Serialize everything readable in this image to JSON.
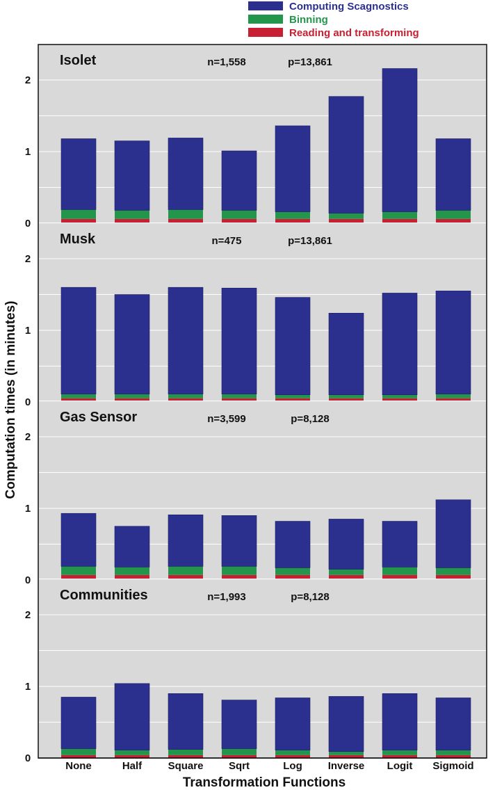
{
  "chart_data": {
    "type": "bar",
    "stacked": true,
    "xlabel": "Transformation Functions",
    "ylabel": "Computation times (in minutes)",
    "categories": [
      "None",
      "Half",
      "Square",
      "Sqrt",
      "Log",
      "Inverse",
      "Logit",
      "Sigmoid"
    ],
    "ylim": [
      0,
      2.5
    ],
    "yticks": [
      "0",
      "1",
      "2"
    ],
    "grid": true,
    "legend_position": "top-right",
    "series_styles": [
      {
        "name": "Reading and transforming",
        "color": "#c62032"
      },
      {
        "name": "Binning",
        "color": "#23964b"
      },
      {
        "name": "Computing Scagnostics",
        "color": "#2b2f8d"
      }
    ],
    "panels": [
      {
        "title": "Isolet",
        "n_label": "n=1,558",
        "p_label": "p=13,861",
        "series": [
          {
            "name": "Reading and transforming",
            "values": [
              0.06,
              0.06,
              0.06,
              0.06,
              0.06,
              0.06,
              0.06,
              0.06
            ]
          },
          {
            "name": "Binning",
            "values": [
              0.13,
              0.12,
              0.13,
              0.12,
              0.1,
              0.08,
              0.1,
              0.12
            ]
          },
          {
            "name": "Computing Scagnostics",
            "values": [
              0.99,
              0.97,
              1.0,
              0.83,
              1.2,
              1.63,
              2.0,
              1.0
            ]
          }
        ]
      },
      {
        "title": "Musk",
        "n_label": "n=475",
        "p_label": "p=13,861",
        "series": [
          {
            "name": "Reading and transforming",
            "values": [
              0.05,
              0.05,
              0.05,
              0.05,
              0.05,
              0.05,
              0.05,
              0.05
            ]
          },
          {
            "name": "Binning",
            "values": [
              0.06,
              0.06,
              0.06,
              0.06,
              0.05,
              0.05,
              0.05,
              0.06
            ]
          },
          {
            "name": "Computing Scagnostics",
            "values": [
              1.49,
              1.39,
              1.49,
              1.48,
              1.36,
              1.14,
              1.42,
              1.44
            ]
          }
        ]
      },
      {
        "title": "Gas Sensor",
        "n_label": "n=3,599",
        "p_label": "p=8,128",
        "series": [
          {
            "name": "Reading and transforming",
            "values": [
              0.07,
              0.07,
              0.07,
              0.07,
              0.07,
              0.07,
              0.07,
              0.07
            ]
          },
          {
            "name": "Binning",
            "values": [
              0.12,
              0.11,
              0.12,
              0.12,
              0.1,
              0.08,
              0.11,
              0.1
            ]
          },
          {
            "name": "Computing Scagnostics",
            "values": [
              0.74,
              0.57,
              0.72,
              0.71,
              0.65,
              0.7,
              0.64,
              0.95
            ]
          }
        ]
      },
      {
        "title": "Communities",
        "n_label": "n=1,993",
        "p_label": "p=8,128",
        "series": [
          {
            "name": "Reading and transforming",
            "values": [
              0.04,
              0.04,
              0.04,
              0.04,
              0.04,
              0.04,
              0.04,
              0.04
            ]
          },
          {
            "name": "Binning",
            "values": [
              0.09,
              0.07,
              0.08,
              0.09,
              0.07,
              0.05,
              0.07,
              0.07
            ]
          },
          {
            "name": "Computing Scagnostics",
            "values": [
              0.72,
              0.93,
              0.78,
              0.68,
              0.73,
              0.77,
              0.79,
              0.73
            ]
          }
        ]
      }
    ]
  }
}
